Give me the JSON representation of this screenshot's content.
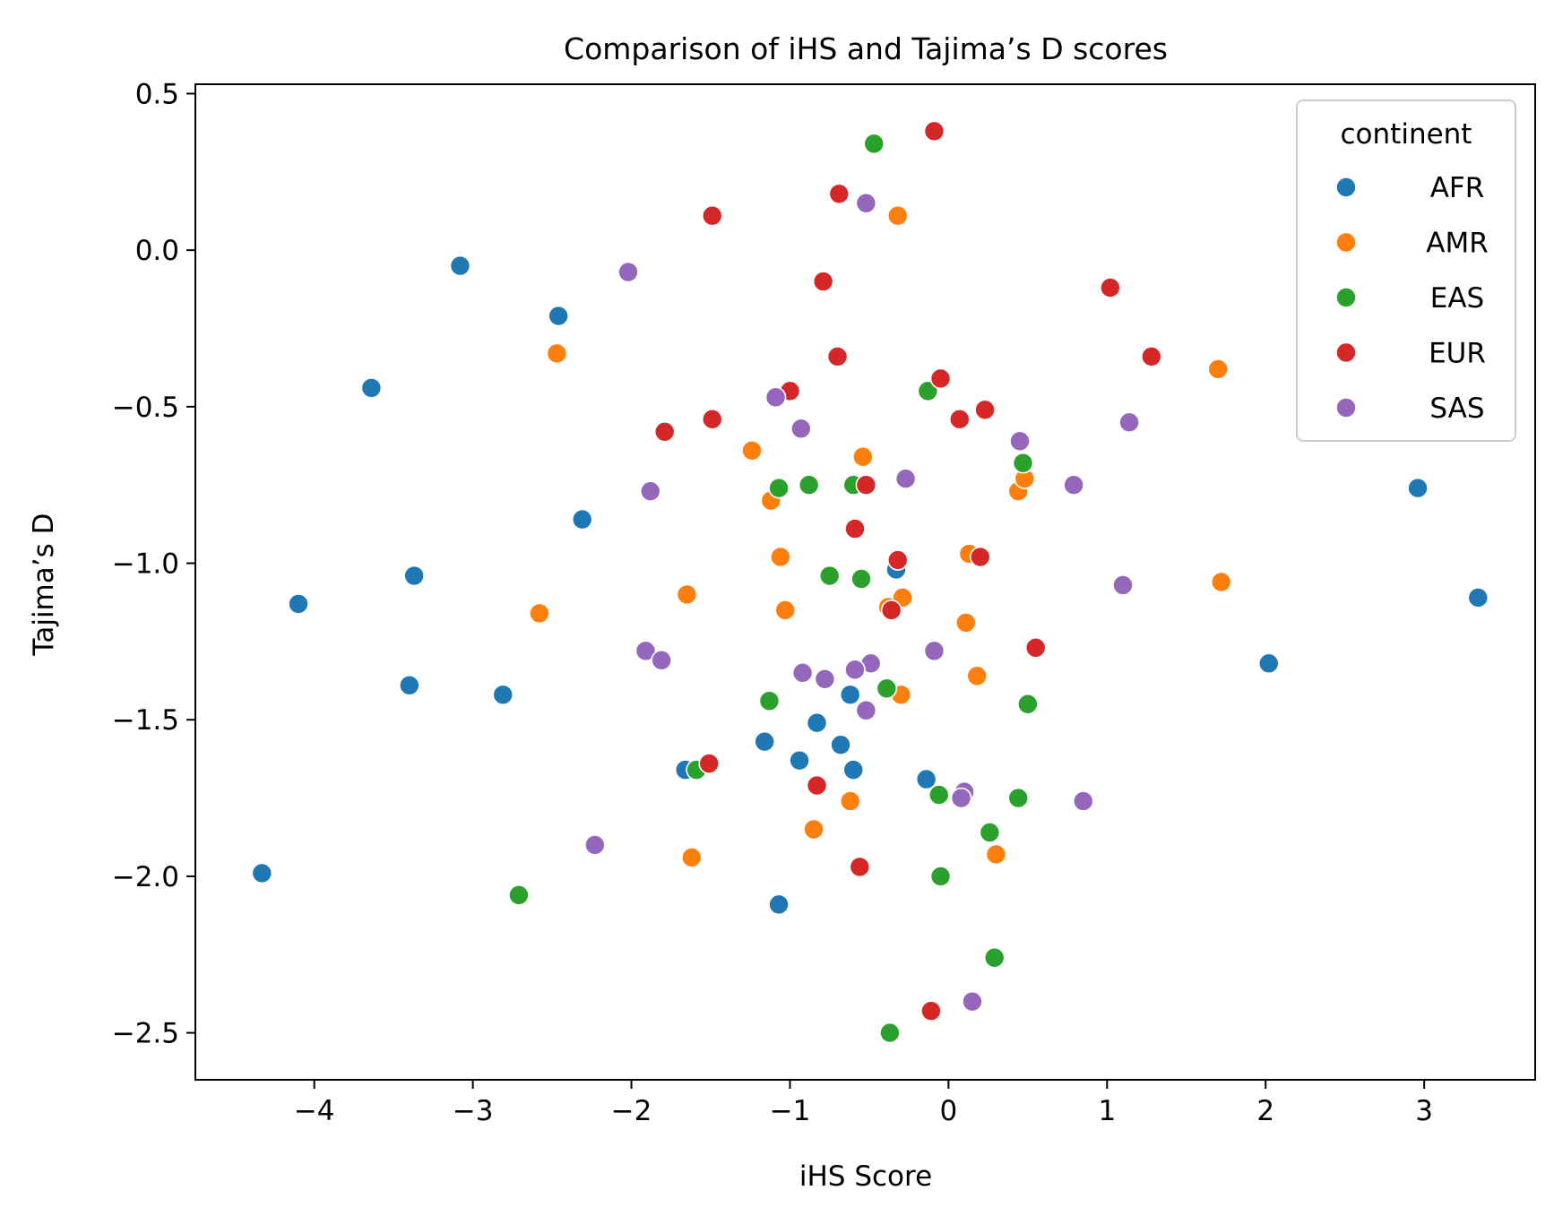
{
  "chart_data": {
    "type": "scatter",
    "title": "Comparison of iHS and Tajima’s D scores",
    "xlabel": "iHS Score",
    "ylabel": "Tajima’s D",
    "xlim": [
      -4.75,
      3.7
    ],
    "ylim": [
      -2.65,
      0.53
    ],
    "xticks": [
      -4,
      -3,
      -2,
      -1,
      0,
      1,
      2,
      3
    ],
    "xtick_labels": [
      "−4",
      "−3",
      "−2",
      "−1",
      "0",
      "1",
      "2",
      "3"
    ],
    "yticks": [
      0.5,
      0.0,
      -0.5,
      -1.0,
      -1.5,
      -2.0,
      -2.5
    ],
    "ytick_labels": [
      "0.5",
      "0.0",
      "−0.5",
      "−1.0",
      "−1.5",
      "−2.0",
      "−2.5"
    ],
    "grid": false,
    "legend": {
      "title": "continent",
      "position": "top-right"
    },
    "series": [
      {
        "name": "AFR",
        "color": "#1f77b4",
        "points": [
          [
            -3.08,
            -0.05
          ],
          [
            -2.46,
            -0.21
          ],
          [
            -3.64,
            -0.44
          ],
          [
            -2.31,
            -0.86
          ],
          [
            -3.37,
            -1.04
          ],
          [
            -4.1,
            -1.13
          ],
          [
            -3.4,
            -1.39
          ],
          [
            -2.81,
            -1.42
          ],
          [
            -4.33,
            -1.99
          ],
          [
            -0.33,
            -1.02
          ],
          [
            -0.62,
            -1.42
          ],
          [
            -0.83,
            -1.51
          ],
          [
            -1.16,
            -1.57
          ],
          [
            -0.68,
            -1.58
          ],
          [
            -0.94,
            -1.63
          ],
          [
            -0.6,
            -1.66
          ],
          [
            -1.66,
            -1.66
          ],
          [
            -0.14,
            -1.69
          ],
          [
            -1.07,
            -2.09
          ],
          [
            2.96,
            -0.76
          ],
          [
            2.02,
            -1.32
          ],
          [
            3.34,
            -1.11
          ]
        ]
      },
      {
        "name": "AMR",
        "color": "#ff7f0e",
        "points": [
          [
            -2.47,
            -0.33
          ],
          [
            -0.32,
            0.11
          ],
          [
            -1.24,
            -0.64
          ],
          [
            -0.54,
            -0.66
          ],
          [
            -1.12,
            -0.8
          ],
          [
            -1.06,
            -0.98
          ],
          [
            -2.58,
            -1.16
          ],
          [
            -1.65,
            -1.1
          ],
          [
            -1.03,
            -1.15
          ],
          [
            -0.38,
            -1.14
          ],
          [
            -0.29,
            -1.11
          ],
          [
            0.13,
            -0.97
          ],
          [
            0.44,
            -0.77
          ],
          [
            0.48,
            -0.73
          ],
          [
            1.7,
            -0.38
          ],
          [
            1.72,
            -1.06
          ],
          [
            0.11,
            -1.19
          ],
          [
            0.18,
            -1.36
          ],
          [
            -0.3,
            -1.42
          ],
          [
            -0.62,
            -1.76
          ],
          [
            -0.85,
            -1.85
          ],
          [
            -1.62,
            -1.94
          ],
          [
            0.3,
            -1.93
          ]
        ]
      },
      {
        "name": "EAS",
        "color": "#2ca02c",
        "points": [
          [
            -0.47,
            0.34
          ],
          [
            -0.13,
            -0.45
          ],
          [
            0.47,
            -0.68
          ],
          [
            -1.07,
            -0.76
          ],
          [
            -0.88,
            -0.75
          ],
          [
            -0.6,
            -0.75
          ],
          [
            -0.75,
            -1.04
          ],
          [
            -0.55,
            -1.05
          ],
          [
            -0.39,
            -1.4
          ],
          [
            -1.13,
            -1.44
          ],
          [
            0.5,
            -1.45
          ],
          [
            -1.59,
            -1.66
          ],
          [
            -0.06,
            -1.74
          ],
          [
            0.44,
            -1.75
          ],
          [
            0.26,
            -1.86
          ],
          [
            -0.05,
            -2.0
          ],
          [
            -2.71,
            -2.06
          ],
          [
            0.29,
            -2.26
          ],
          [
            -0.37,
            -2.5
          ]
        ]
      },
      {
        "name": "EUR",
        "color": "#d62728",
        "points": [
          [
            -0.09,
            0.38
          ],
          [
            -0.69,
            0.18
          ],
          [
            -1.49,
            0.11
          ],
          [
            -0.79,
            -0.1
          ],
          [
            1.02,
            -0.12
          ],
          [
            -0.7,
            -0.34
          ],
          [
            1.28,
            -0.34
          ],
          [
            -0.05,
            -0.41
          ],
          [
            -1.0,
            -0.45
          ],
          [
            0.07,
            -0.54
          ],
          [
            0.23,
            -0.51
          ],
          [
            -1.49,
            -0.54
          ],
          [
            -1.79,
            -0.58
          ],
          [
            -0.52,
            -0.75
          ],
          [
            -0.59,
            -0.89
          ],
          [
            -0.32,
            -0.99
          ],
          [
            0.2,
            -0.98
          ],
          [
            -0.36,
            -1.15
          ],
          [
            0.55,
            -1.27
          ],
          [
            -1.51,
            -1.64
          ],
          [
            -0.83,
            -1.71
          ],
          [
            -0.56,
            -1.97
          ],
          [
            -0.11,
            -2.43
          ]
        ]
      },
      {
        "name": "SAS",
        "color": "#9467bd",
        "points": [
          [
            -0.52,
            0.15
          ],
          [
            -2.02,
            -0.07
          ],
          [
            -1.09,
            -0.47
          ],
          [
            -0.93,
            -0.57
          ],
          [
            1.14,
            -0.55
          ],
          [
            0.45,
            -0.61
          ],
          [
            -1.88,
            -0.77
          ],
          [
            -0.27,
            -0.73
          ],
          [
            0.79,
            -0.75
          ],
          [
            1.1,
            -1.07
          ],
          [
            -1.91,
            -1.28
          ],
          [
            -1.81,
            -1.31
          ],
          [
            -0.09,
            -1.28
          ],
          [
            -0.49,
            -1.32
          ],
          [
            -0.59,
            -1.34
          ],
          [
            -0.92,
            -1.35
          ],
          [
            -0.78,
            -1.37
          ],
          [
            -0.52,
            -1.47
          ],
          [
            0.1,
            -1.73
          ],
          [
            0.08,
            -1.75
          ],
          [
            0.85,
            -1.76
          ],
          [
            -2.23,
            -1.9
          ],
          [
            0.15,
            -2.4
          ]
        ]
      }
    ]
  }
}
